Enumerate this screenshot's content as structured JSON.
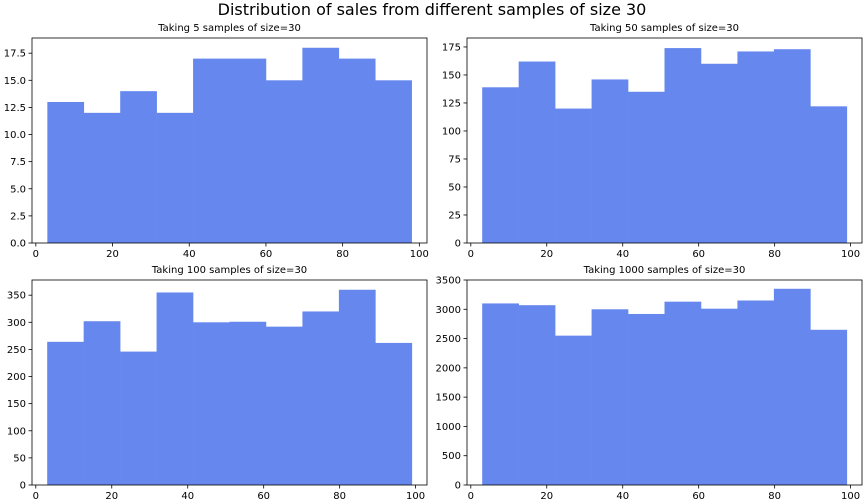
{
  "figure": {
    "suptitle": "Distribution of sales from different samples of size 30",
    "bar_color": "#6688ee"
  },
  "chart_data": [
    {
      "type": "bar",
      "title": "Taking 5 samples of size=30",
      "bin_edges": [
        3,
        12.5,
        22,
        31.5,
        41,
        50.5,
        60,
        69.5,
        79,
        88.5,
        98
      ],
      "values": [
        13,
        12,
        14,
        12,
        17,
        17,
        15,
        18,
        17,
        15
      ],
      "xlim": [
        -1,
        102
      ],
      "ylim": [
        0,
        18.9
      ],
      "xticks": [
        0,
        20,
        40,
        60,
        80,
        100
      ],
      "yticks": [
        0,
        2.5,
        5,
        7.5,
        10,
        12.5,
        15,
        17.5
      ],
      "ytick_labels": [
        "0.0",
        "2.5",
        "5.0",
        "7.5",
        "10.0",
        "12.5",
        "15.0",
        "17.5"
      ]
    },
    {
      "type": "bar",
      "title": "Taking 50 samples of size=30",
      "bin_edges": [
        3,
        12.6,
        22.2,
        31.8,
        41.4,
        51,
        60.6,
        70.2,
        79.8,
        89.4,
        99
      ],
      "values": [
        139,
        162,
        120,
        146,
        135,
        174,
        160,
        171,
        173,
        122
      ],
      "xlim": [
        -1,
        103
      ],
      "ylim": [
        0,
        183
      ],
      "xticks": [
        0,
        20,
        40,
        60,
        80,
        100
      ],
      "yticks": [
        0,
        25,
        50,
        75,
        100,
        125,
        150,
        175
      ],
      "ytick_labels": [
        "0",
        "25",
        "50",
        "75",
        "100",
        "125",
        "150",
        "175"
      ]
    },
    {
      "type": "bar",
      "title": "Taking 100 samples of size=30",
      "bin_edges": [
        3,
        12.6,
        22.2,
        31.8,
        41.4,
        51,
        60.6,
        70.2,
        79.8,
        89.4,
        99
      ],
      "values": [
        264,
        302,
        246,
        355,
        300,
        301,
        292,
        320,
        360,
        262
      ],
      "xlim": [
        -1,
        103
      ],
      "ylim": [
        0,
        378
      ],
      "xticks": [
        0,
        20,
        40,
        60,
        80,
        100
      ],
      "yticks": [
        0,
        50,
        100,
        150,
        200,
        250,
        300,
        350
      ],
      "ytick_labels": [
        "0",
        "50",
        "100",
        "150",
        "200",
        "250",
        "300",
        "350"
      ]
    },
    {
      "type": "bar",
      "title": "Taking 1000 samples of size=30",
      "bin_edges": [
        3,
        12.6,
        22.2,
        31.8,
        41.4,
        51,
        60.6,
        70.2,
        79.8,
        89.4,
        99
      ],
      "values": [
        3100,
        3070,
        2550,
        3000,
        2920,
        3130,
        3010,
        3150,
        3350,
        2650
      ],
      "xlim": [
        -1,
        103
      ],
      "ylim": [
        0,
        3500
      ],
      "xticks": [
        0,
        20,
        40,
        60,
        80,
        100
      ],
      "yticks": [
        0,
        500,
        1000,
        1500,
        2000,
        2500,
        3000,
        3500
      ],
      "ytick_labels": [
        "0",
        "500",
        "1000",
        "1500",
        "2000",
        "2500",
        "3000",
        "3500"
      ]
    }
  ]
}
